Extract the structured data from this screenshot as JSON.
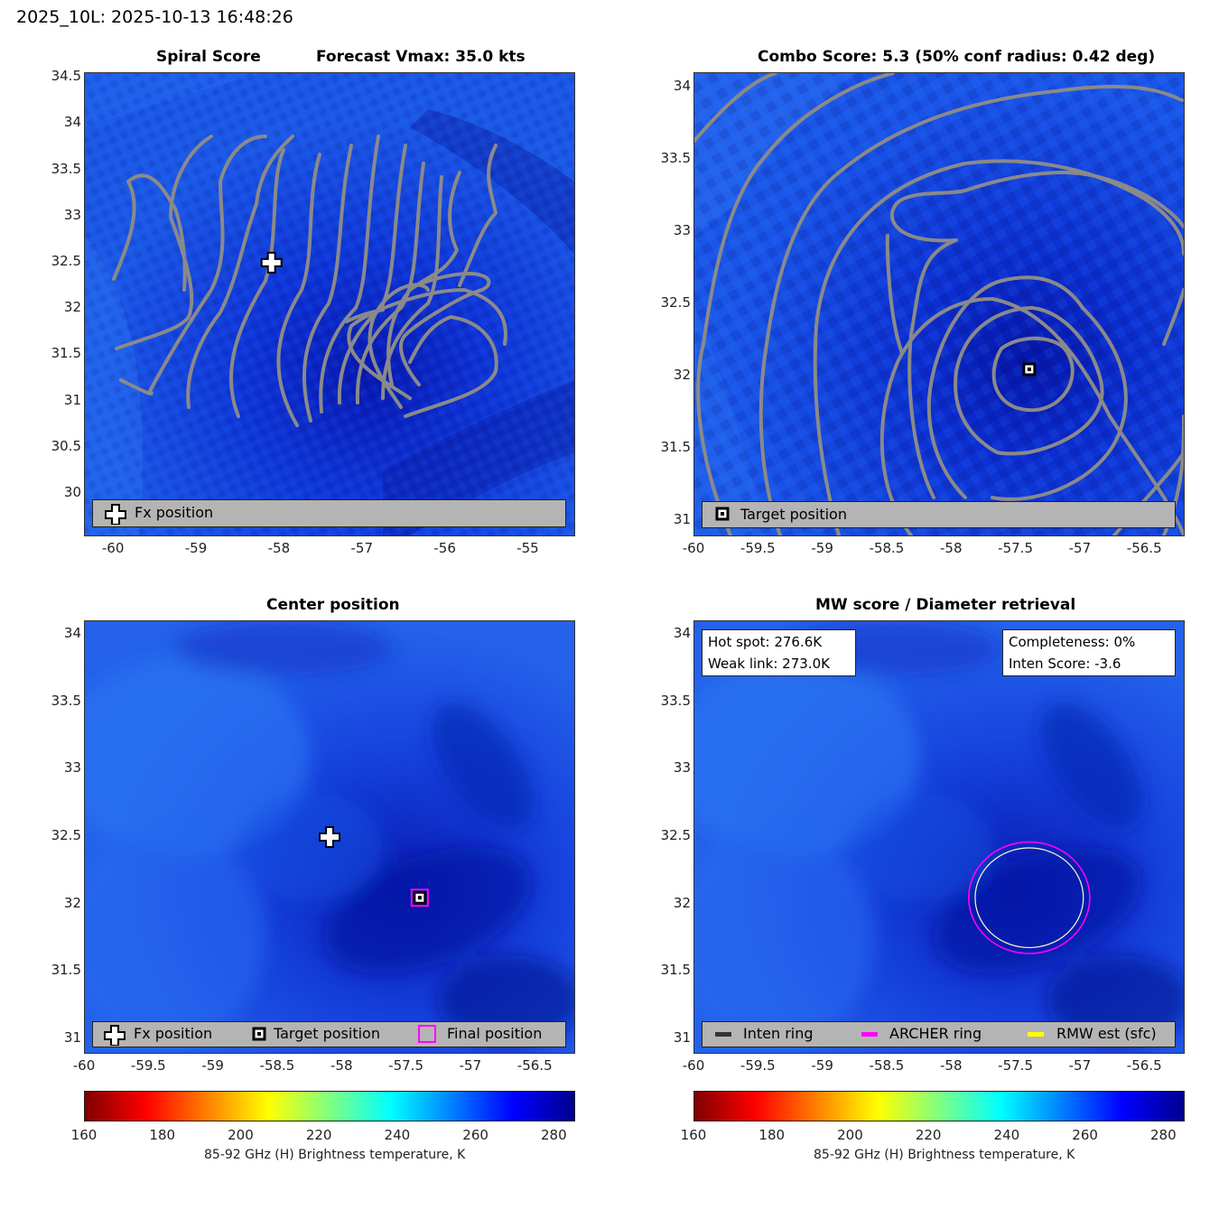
{
  "figure": {
    "title": "2025_10L: 2025-10-13 16:48:26"
  },
  "panels": {
    "spiral": {
      "title_left": "Spiral Score",
      "title_right": "Forecast Vmax: 35.0 kts",
      "legend": [
        {
          "icon": "cross",
          "label": "Fx position"
        }
      ]
    },
    "combo": {
      "title": "Combo Score: 5.3  (50% conf radius: 0.42 deg)",
      "legend": [
        {
          "icon": "square",
          "label": "Target position"
        }
      ]
    },
    "center": {
      "title": "Center position",
      "legend": [
        {
          "icon": "cross",
          "label": "Fx position"
        },
        {
          "icon": "square",
          "label": "Target position"
        },
        {
          "icon": "magenta-square",
          "label": "Final position"
        }
      ]
    },
    "mw": {
      "title": "MW score / Diameter retrieval",
      "info_left": [
        "Hot spot: 276.6K",
        "Weak link: 273.0K"
      ],
      "info_right": [
        "Completeness: 0%",
        "Inten Score: -3.6"
      ],
      "legend": [
        {
          "icon": "dark-gray-line",
          "label": "Inten ring"
        },
        {
          "icon": "magenta-line",
          "label": "ARCHER ring"
        },
        {
          "icon": "yellow-line",
          "label": "RMW est (sfc)"
        }
      ]
    }
  },
  "colorbars": {
    "label": "85-92 GHz (H) Brightness temperature, K",
    "ticks": [
      "160",
      "180",
      "200",
      "220",
      "240",
      "260",
      "280"
    ],
    "range": [
      160,
      285
    ]
  },
  "colors": {
    "contour": "#8a8a8a",
    "archer_ring": "#ff00ff",
    "rmw_ring": "#ffff00",
    "legend_bg": "#b4b4b4"
  },
  "chart_data": [
    {
      "type": "heatmap",
      "name": "Spiral Score",
      "xlim": [
        -60.35,
        -54.45
      ],
      "ylim": [
        29.55,
        34.55
      ],
      "xticks": [
        "-60",
        "-59",
        "-58",
        "-57",
        "-56",
        "-55"
      ],
      "yticks": [
        "30",
        "30.5",
        "31",
        "31.5",
        "32",
        "32.5",
        "33",
        "33.5",
        "34",
        "34.5"
      ],
      "markers": [
        {
          "kind": "Fx position",
          "lon": -58.1,
          "lat": 32.5
        }
      ]
    },
    {
      "type": "heatmap",
      "name": "Combo Score",
      "xlim": [
        -60.0,
        -56.2
      ],
      "ylim": [
        30.9,
        34.1
      ],
      "xticks": [
        "-60",
        "-59.5",
        "-59",
        "-58.5",
        "-58",
        "-57.5",
        "-57",
        "-56.5"
      ],
      "yticks": [
        "31",
        "31.5",
        "32",
        "32.5",
        "33",
        "33.5",
        "34"
      ],
      "markers": [
        {
          "kind": "Target position",
          "lon": -57.4,
          "lat": 32.05
        }
      ]
    },
    {
      "type": "heatmap",
      "name": "Center position",
      "xlim": [
        -60.0,
        -56.2
      ],
      "ylim": [
        30.9,
        34.1
      ],
      "xticks": [
        "-60",
        "-59.5",
        "-59",
        "-58.5",
        "-58",
        "-57.5",
        "-57",
        "-56.5"
      ],
      "yticks": [
        "31",
        "31.5",
        "32",
        "32.5",
        "33",
        "33.5",
        "34"
      ],
      "markers": [
        {
          "kind": "Fx position",
          "lon": -58.1,
          "lat": 32.5
        },
        {
          "kind": "Target position",
          "lon": -57.4,
          "lat": 32.05
        },
        {
          "kind": "Final position",
          "lon": -57.4,
          "lat": 32.05
        }
      ]
    },
    {
      "type": "heatmap",
      "name": "MW score / Diameter retrieval",
      "xlim": [
        -60.0,
        -56.2
      ],
      "ylim": [
        30.9,
        34.1
      ],
      "xticks": [
        "-60",
        "-59.5",
        "-59",
        "-58.5",
        "-58",
        "-57.5",
        "-57",
        "-56.5"
      ],
      "yticks": [
        "31",
        "31.5",
        "32",
        "32.5",
        "33",
        "33.5",
        "34"
      ],
      "rings": [
        {
          "kind": "ARCHER ring",
          "lon": -57.4,
          "lat": 32.05,
          "radius_deg": 0.47
        },
        {
          "kind": "RMW est (sfc)",
          "lon": -57.4,
          "lat": 32.05,
          "radius_deg": 0.42
        }
      ]
    }
  ]
}
